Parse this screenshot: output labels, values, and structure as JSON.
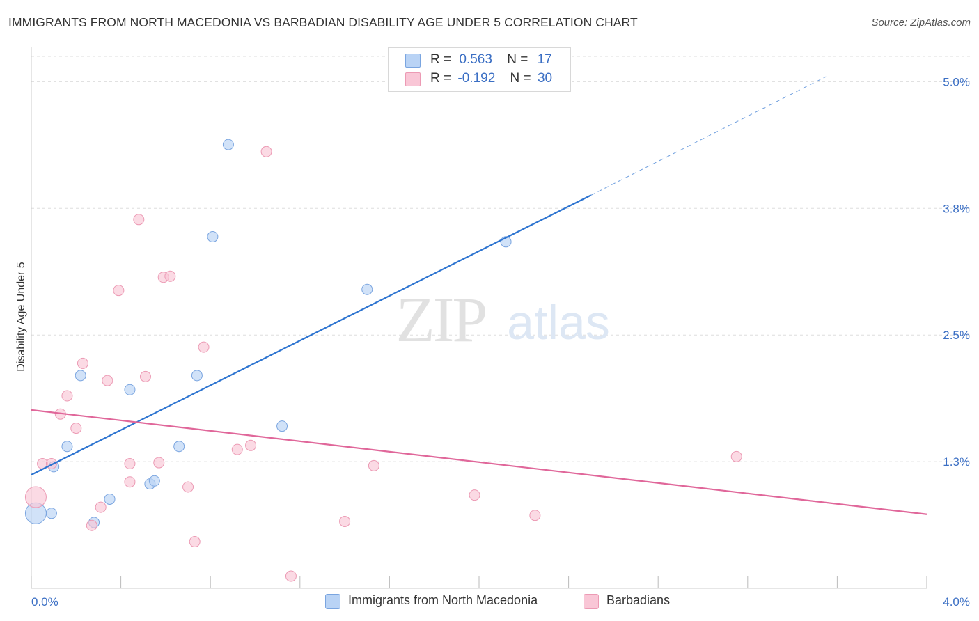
{
  "title": "IMMIGRANTS FROM NORTH MACEDONIA VS BARBADIAN DISABILITY AGE UNDER 5 CORRELATION CHART",
  "source": "Source: ZipAtlas.com",
  "watermark": {
    "zip": "ZIP",
    "atlas": "atlas"
  },
  "legend": {
    "r_label": "R =",
    "n_label": "N =",
    "rows": [
      {
        "r": "0.563",
        "n": "17",
        "swatch_fill": "#b9d3f5",
        "swatch_stroke": "#7aa5e0"
      },
      {
        "r": "-0.192",
        "n": "30",
        "swatch_fill": "#f9c6d6",
        "swatch_stroke": "#ec9ab4"
      }
    ]
  },
  "bottom_legend": [
    {
      "label": "Immigrants from North Macedonia"
    },
    {
      "label": "Barbadians"
    }
  ],
  "colors": {
    "blue_fill": "#b9d3f5",
    "blue_stroke": "#7aa5e0",
    "blue_line": "#2d74d0",
    "pink_fill": "#f9c6d6",
    "pink_stroke": "#ec9ab4",
    "pink_line": "#e0679a",
    "tick_label": "#3b6fc4",
    "grid": "#dddddd"
  },
  "chart_data": {
    "type": "scatter",
    "title": "IMMIGRANTS FROM NORTH MACEDONIA VS BARBADIAN DISABILITY AGE UNDER 5 CORRELATION CHART",
    "xlabel": "",
    "ylabel": "Disability Age Under 5",
    "xlim": [
      0,
      4.0
    ],
    "ylim": [
      0,
      5.25
    ],
    "x_tick_labels": [
      {
        "value": 0,
        "label": "0.0%"
      },
      {
        "value": 4.0,
        "label": "4.0%"
      }
    ],
    "y_tick_labels": [
      {
        "value": 1.25,
        "label": "1.3%"
      },
      {
        "value": 2.5,
        "label": "2.5%"
      },
      {
        "value": 3.75,
        "label": "3.8%"
      },
      {
        "value": 5.0,
        "label": "5.0%"
      }
    ],
    "series": [
      {
        "name": "Immigrants from North Macedonia",
        "color": "blue",
        "r": 0.563,
        "n": 17,
        "points": [
          {
            "x": 0.02,
            "y": 0.74,
            "big": true
          },
          {
            "x": 0.09,
            "y": 0.74
          },
          {
            "x": 0.1,
            "y": 1.2
          },
          {
            "x": 0.16,
            "y": 1.4
          },
          {
            "x": 0.28,
            "y": 0.65
          },
          {
            "x": 0.35,
            "y": 0.88
          },
          {
            "x": 0.53,
            "y": 1.03
          },
          {
            "x": 0.55,
            "y": 1.06
          },
          {
            "x": 0.66,
            "y": 1.4
          },
          {
            "x": 0.22,
            "y": 2.1
          },
          {
            "x": 0.44,
            "y": 1.96
          },
          {
            "x": 0.74,
            "y": 2.1
          },
          {
            "x": 1.12,
            "y": 1.6
          },
          {
            "x": 0.81,
            "y": 3.47
          },
          {
            "x": 0.88,
            "y": 4.38
          },
          {
            "x": 1.5,
            "y": 2.95
          },
          {
            "x": 2.12,
            "y": 3.42
          }
        ],
        "trend": {
          "x0": 0.0,
          "y0": 1.12,
          "x1": 2.5,
          "y1": 3.88,
          "dash_x1": 3.55,
          "dash_y1": 5.05
        }
      },
      {
        "name": "Barbadians",
        "color": "pink",
        "r": -0.192,
        "n": 30,
        "points": [
          {
            "x": 0.02,
            "y": 0.9,
            "big": true
          },
          {
            "x": 0.05,
            "y": 1.23
          },
          {
            "x": 0.09,
            "y": 1.23
          },
          {
            "x": 0.13,
            "y": 1.72
          },
          {
            "x": 0.16,
            "y": 1.9
          },
          {
            "x": 0.2,
            "y": 1.58
          },
          {
            "x": 0.23,
            "y": 2.22
          },
          {
            "x": 0.27,
            "y": 0.62
          },
          {
            "x": 0.31,
            "y": 0.8
          },
          {
            "x": 0.34,
            "y": 2.05
          },
          {
            "x": 0.39,
            "y": 2.94
          },
          {
            "x": 0.44,
            "y": 1.05
          },
          {
            "x": 0.44,
            "y": 1.23
          },
          {
            "x": 0.48,
            "y": 3.64
          },
          {
            "x": 0.51,
            "y": 2.09
          },
          {
            "x": 0.57,
            "y": 1.24
          },
          {
            "x": 0.59,
            "y": 3.07
          },
          {
            "x": 0.62,
            "y": 3.08
          },
          {
            "x": 0.7,
            "y": 1.0
          },
          {
            "x": 0.73,
            "y": 0.46
          },
          {
            "x": 0.77,
            "y": 2.38
          },
          {
            "x": 0.92,
            "y": 1.37
          },
          {
            "x": 0.98,
            "y": 1.41
          },
          {
            "x": 1.05,
            "y": 4.31
          },
          {
            "x": 1.16,
            "y": 0.12
          },
          {
            "x": 1.4,
            "y": 0.66
          },
          {
            "x": 1.53,
            "y": 1.21
          },
          {
            "x": 1.98,
            "y": 0.92
          },
          {
            "x": 2.25,
            "y": 0.72
          },
          {
            "x": 3.15,
            "y": 1.3
          }
        ],
        "trend": {
          "x0": 0.0,
          "y0": 1.76,
          "x1": 4.0,
          "y1": 0.73
        }
      }
    ]
  }
}
